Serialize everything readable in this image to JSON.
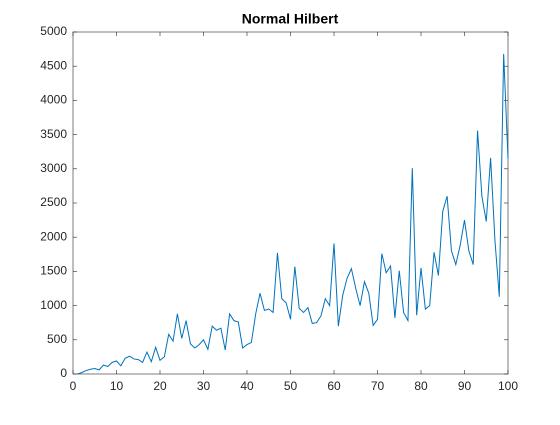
{
  "chart_data": {
    "type": "line",
    "title": "Normal Hilbert",
    "x": [
      1,
      2,
      3,
      4,
      5,
      6,
      7,
      8,
      9,
      10,
      11,
      12,
      13,
      14,
      15,
      16,
      17,
      18,
      19,
      20,
      21,
      22,
      23,
      24,
      25,
      26,
      27,
      28,
      29,
      30,
      31,
      32,
      33,
      34,
      35,
      36,
      37,
      38,
      39,
      40,
      41,
      42,
      43,
      44,
      45,
      46,
      47,
      48,
      49,
      50,
      51,
      52,
      53,
      54,
      55,
      56,
      57,
      58,
      59,
      60,
      61,
      62,
      63,
      64,
      65,
      66,
      67,
      68,
      69,
      70,
      71,
      72,
      73,
      74,
      75,
      76,
      77,
      78,
      79,
      80,
      81,
      82,
      83,
      84,
      85,
      86,
      87,
      88,
      89,
      90,
      91,
      92,
      93,
      94,
      95,
      96,
      97,
      98,
      99,
      100
    ],
    "series": [
      {
        "name": "Normal Hilbert",
        "color": "#0072bd",
        "values": [
          0,
          20,
          50,
          70,
          80,
          60,
          130,
          110,
          170,
          190,
          120,
          230,
          260,
          220,
          210,
          170,
          320,
          180,
          390,
          200,
          250,
          580,
          480,
          880,
          520,
          780,
          440,
          380,
          430,
          500,
          360,
          700,
          640,
          670,
          350,
          880,
          780,
          760,
          380,
          430,
          460,
          880,
          1180,
          930,
          950,
          900,
          1770,
          1100,
          1040,
          800,
          1570,
          960,
          900,
          970,
          740,
          750,
          850,
          1100,
          1000,
          1910,
          700,
          1150,
          1400,
          1540,
          1250,
          1000,
          1350,
          1180,
          710,
          800,
          1760,
          1480,
          1580,
          820,
          1510,
          900,
          780,
          3010,
          860,
          1550,
          950,
          1000,
          1780,
          1440,
          2380,
          2600,
          1800,
          1600,
          1880,
          2250,
          1800,
          1600,
          3560,
          2600,
          2230,
          3160,
          1950,
          1130,
          4680,
          3150
        ]
      }
    ],
    "xlim": [
      0,
      100
    ],
    "xticks": [
      0,
      10,
      20,
      30,
      40,
      50,
      60,
      70,
      80,
      90,
      100
    ],
    "ylim": [
      0,
      5000
    ],
    "yticks": [
      0,
      500,
      1000,
      1500,
      2000,
      2500,
      3000,
      3500,
      4000,
      4500,
      5000
    ]
  }
}
